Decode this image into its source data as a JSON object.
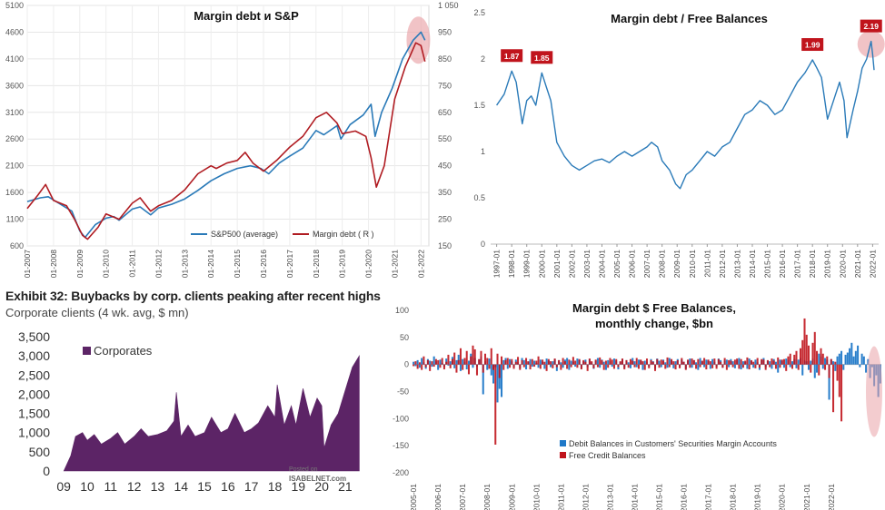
{
  "chart_data": [
    {
      "id": "margin-sp",
      "type": "line",
      "title": "Margin debt и S&P",
      "x_tick_labels": [
        "01-2007",
        "01-2008",
        "01-2009",
        "01-2010",
        "01-2011",
        "01-2012",
        "01-2013",
        "01-2014",
        "01-2015",
        "01-2016",
        "01-2017",
        "01-2018",
        "01-2019",
        "01-2020",
        "01-2021",
        "01-2022"
      ],
      "left_axis": {
        "ylim": [
          600,
          5100
        ],
        "ticks": [
          "600",
          "1100",
          "1600",
          "2100",
          "2600",
          "3100",
          "3600",
          "4100",
          "4600",
          "5100"
        ]
      },
      "right_axis": {
        "ylim": [
          150,
          1050
        ],
        "ticks": [
          "150",
          "250",
          "350",
          "450",
          "550",
          "650",
          "750",
          "850",
          "950",
          "1 050"
        ]
      },
      "series": [
        {
          "name": "S&P500 (average)",
          "color": "#2a7ab8",
          "axis": "left",
          "x": [
            2007,
            2007.5,
            2007.8,
            2008.3,
            2008.7,
            2009.0,
            2009.2,
            2009.6,
            2010.0,
            2010.3,
            2010.5,
            2011.0,
            2011.3,
            2011.7,
            2012.0,
            2012.5,
            2013.0,
            2013.5,
            2014.0,
            2014.5,
            2015.0,
            2015.5,
            2015.9,
            2016.2,
            2016.6,
            2017.0,
            2017.5,
            2018.0,
            2018.3,
            2018.8,
            2018.95,
            2019.3,
            2019.8,
            2020.1,
            2020.25,
            2020.5,
            2020.9,
            2021.3,
            2021.7,
            2022.0,
            2022.15
          ],
          "y": [
            1430,
            1500,
            1520,
            1370,
            1250,
            880,
            760,
            1000,
            1120,
            1150,
            1080,
            1290,
            1330,
            1180,
            1310,
            1380,
            1480,
            1640,
            1820,
            1950,
            2050,
            2100,
            2050,
            1950,
            2150,
            2280,
            2430,
            2760,
            2680,
            2850,
            2600,
            2870,
            3050,
            3250,
            2650,
            3100,
            3550,
            4100,
            4450,
            4600,
            4450
          ]
        },
        {
          "name": "Margin debt ( R )",
          "color": "#b01c22",
          "axis": "right",
          "x": [
            2007,
            2007.4,
            2007.7,
            2008.0,
            2008.5,
            2008.8,
            2009.1,
            2009.3,
            2009.7,
            2010.0,
            2010.5,
            2011.0,
            2011.3,
            2011.7,
            2012.0,
            2012.5,
            2013.0,
            2013.5,
            2014.0,
            2014.2,
            2014.6,
            2015.0,
            2015.3,
            2015.6,
            2016.0,
            2016.5,
            2017.0,
            2017.5,
            2018.0,
            2018.4,
            2018.8,
            2019.0,
            2019.5,
            2019.9,
            2020.1,
            2020.3,
            2020.6,
            2021.0,
            2021.4,
            2021.8,
            2022.0,
            2022.15
          ],
          "y": [
            290,
            340,
            380,
            320,
            300,
            250,
            190,
            175,
            220,
            270,
            250,
            310,
            330,
            280,
            300,
            320,
            360,
            420,
            450,
            440,
            460,
            470,
            500,
            460,
            430,
            470,
            520,
            560,
            630,
            650,
            610,
            570,
            580,
            560,
            480,
            370,
            450,
            700,
            820,
            910,
            900,
            840
          ]
        }
      ],
      "annotation": "highlight circle at 2021-2022 peak"
    },
    {
      "id": "ratio",
      "type": "line",
      "title": "Margin debt / Free Balances",
      "x_tick_labels": [
        "1997-01",
        "1998-01",
        "1999-01",
        "2000-01",
        "2001-01",
        "2002-01",
        "2003-01",
        "2004-01",
        "2005-01",
        "2006-01",
        "2007-01",
        "2008-01",
        "2009-01",
        "2010-01",
        "2011-01",
        "2012-01",
        "2013-01",
        "2014-01",
        "2015-01",
        "2016-01",
        "2017-01",
        "2018-01",
        "2019-01",
        "2020-01",
        "2021-01",
        "2022-01"
      ],
      "ylim": [
        0,
        2.5
      ],
      "y_ticks": [
        "0",
        "0.5",
        "1",
        "1.5",
        "2",
        "2.5"
      ],
      "series": [
        {
          "name": "Margin debt / Free Balances",
          "color": "#2a7ab8",
          "x": [
            1997.0,
            1997.5,
            1998.0,
            1998.3,
            1998.7,
            1999.0,
            1999.3,
            1999.6,
            2000.0,
            2000.3,
            2000.6,
            2001.0,
            2001.5,
            2002.0,
            2002.5,
            2003.0,
            2003.5,
            2004.0,
            2004.5,
            2005.0,
            2005.5,
            2006.0,
            2006.5,
            2007.0,
            2007.3,
            2007.7,
            2008.0,
            2008.5,
            2008.9,
            2009.2,
            2009.6,
            2010.0,
            2010.5,
            2011.0,
            2011.5,
            2012.0,
            2012.5,
            2013.0,
            2013.5,
            2014.0,
            2014.5,
            2015.0,
            2015.5,
            2016.0,
            2016.5,
            2017.0,
            2017.5,
            2018.0,
            2018.3,
            2018.6,
            2019.0,
            2019.5,
            2019.8,
            2020.1,
            2020.3,
            2020.7,
            2021.0,
            2021.3,
            2021.6,
            2021.9,
            2022.0,
            2022.1
          ],
          "y": [
            1.5,
            1.62,
            1.87,
            1.75,
            1.3,
            1.55,
            1.6,
            1.5,
            1.85,
            1.7,
            1.55,
            1.1,
            0.95,
            0.85,
            0.8,
            0.85,
            0.9,
            0.92,
            0.88,
            0.95,
            1.0,
            0.95,
            1.0,
            1.05,
            1.1,
            1.05,
            0.9,
            0.8,
            0.65,
            0.6,
            0.75,
            0.8,
            0.9,
            1.0,
            0.95,
            1.05,
            1.1,
            1.25,
            1.4,
            1.45,
            1.55,
            1.5,
            1.4,
            1.45,
            1.6,
            1.75,
            1.85,
            1.99,
            1.9,
            1.8,
            1.35,
            1.6,
            1.75,
            1.55,
            1.15,
            1.45,
            1.65,
            1.9,
            2.0,
            2.19,
            2.05,
            1.88
          ]
        }
      ],
      "annotations": [
        {
          "x": 1998.0,
          "y": 1.87,
          "label": "1.87"
        },
        {
          "x": 2000.0,
          "y": 1.85,
          "label": "1.85"
        },
        {
          "x": 2018.0,
          "y": 1.99,
          "label": "1.99"
        },
        {
          "x": 2021.9,
          "y": 2.19,
          "label": "2.19"
        }
      ]
    },
    {
      "id": "corporates",
      "type": "area",
      "title": "Exhibit 32: Buybacks by corp. clients peaking after recent highs",
      "subtitle": "Corporate clients (4 wk. avg, $ mn)",
      "x_tick_labels": [
        "09",
        "10",
        "11",
        "12",
        "13",
        "14",
        "15",
        "16",
        "17",
        "18",
        "19",
        "20",
        "21"
      ],
      "ylim": [
        0,
        3500
      ],
      "y_ticks": [
        "0",
        "500",
        "1,000",
        "1,500",
        "2,000",
        "2,500",
        "3,000",
        "3,500"
      ],
      "legend": "Corporates",
      "watermark": [
        "Posted on",
        "ISABELNET.com"
      ],
      "series": [
        {
          "name": "Corporates",
          "color": "#5c2466",
          "x": [
            9.0,
            9.3,
            9.5,
            9.8,
            10.0,
            10.3,
            10.6,
            11.0,
            11.3,
            11.6,
            12.0,
            12.3,
            12.6,
            13.0,
            13.4,
            13.7,
            13.8,
            14.0,
            14.3,
            14.6,
            15.0,
            15.3,
            15.7,
            16.0,
            16.3,
            16.7,
            17.0,
            17.3,
            17.7,
            18.0,
            18.1,
            18.4,
            18.7,
            18.9,
            19.2,
            19.5,
            19.8,
            20.0,
            20.1,
            20.4,
            20.7,
            21.0,
            21.3,
            21.6
          ],
          "y": [
            0,
            400,
            900,
            1000,
            800,
            950,
            700,
            850,
            1000,
            700,
            900,
            1100,
            900,
            950,
            1050,
            1300,
            2050,
            900,
            1200,
            900,
            1000,
            1400,
            1000,
            1100,
            1500,
            1000,
            1100,
            1250,
            1700,
            1400,
            2250,
            1200,
            1700,
            1200,
            2150,
            1400,
            1900,
            1700,
            600,
            1200,
            1500,
            2100,
            2700,
            3000
          ]
        }
      ]
    },
    {
      "id": "monthly-change",
      "type": "bar",
      "title_lines": [
        "Margin debt $ Free Balances,",
        "monthly change, $bn"
      ],
      "x_tick_labels": [
        "2005-01",
        "2006-01",
        "2007-01",
        "2008-01",
        "2009-01",
        "2010-01",
        "2011-01",
        "2012-01",
        "2013-01",
        "2014-01",
        "2015-01",
        "2016-01",
        "2017-01",
        "2018-01",
        "2019-01",
        "2020-01",
        "2021-01",
        "2022-01"
      ],
      "ylim": [
        -200,
        100
      ],
      "y_ticks": [
        "-200",
        "-150",
        "-100",
        "-50",
        "0",
        "50",
        "100"
      ],
      "series": [
        {
          "name": "Debit Balances in Customers' Securities Margin Accounts",
          "color": "#1f78c8",
          "values": [
            5,
            -3,
            8,
            -6,
            12,
            4,
            -8,
            10,
            7,
            -4,
            15,
            6,
            -10,
            9,
            3,
            -5,
            11,
            -2,
            6,
            14,
            -7,
            8,
            18,
            -12,
            10,
            5,
            -9,
            7,
            20,
            -6,
            12,
            -4,
            9,
            15,
            -55,
            6,
            -10,
            11,
            -20,
            -35,
            -5,
            -70,
            -45,
            -60,
            8,
            12,
            -8,
            10,
            6,
            -5,
            9,
            4,
            -7,
            12,
            8,
            -9,
            5,
            10,
            -4,
            7,
            3,
            -6,
            9,
            5,
            -8,
            11,
            7,
            -5,
            6,
            10,
            -12,
            8,
            4,
            -6,
            9,
            12,
            -10,
            7,
            5,
            -4,
            11,
            8,
            -7,
            6,
            9,
            -5,
            10,
            4,
            -8,
            7,
            12,
            -6,
            9,
            5,
            -10,
            8,
            6,
            -4,
            11,
            7,
            -9,
            5,
            10,
            -6,
            8,
            4,
            -7,
            12,
            6,
            -5,
            9,
            8,
            -10,
            7,
            5,
            -4,
            10,
            6,
            -8,
            11,
            7,
            -5,
            9,
            4,
            -6,
            12,
            8,
            -7,
            6,
            10,
            -5,
            9,
            5,
            -8,
            7,
            11,
            -6,
            8,
            4,
            -10,
            12,
            6,
            -5,
            9,
            7,
            -8,
            10,
            5,
            -4,
            11,
            8,
            -6,
            7,
            9,
            -5,
            10,
            6,
            -7,
            8,
            12,
            -9,
            6,
            5,
            -8,
            11,
            7,
            -6,
            9,
            4,
            -10,
            8,
            12,
            -5,
            7,
            6,
            -8,
            10,
            5,
            -15,
            9,
            7,
            -6,
            11,
            8,
            -5,
            6,
            10,
            -7,
            9,
            12,
            -20,
            8,
            6,
            -10,
            7,
            11,
            -25,
            -15,
            20,
            15,
            -8,
            12,
            9,
            -65,
            10,
            6,
            -12,
            15,
            20,
            25,
            -10,
            18,
            22,
            30,
            40,
            15,
            25,
            35,
            -5,
            20,
            15,
            -15,
            10,
            -25,
            -5,
            -40,
            -20,
            -60,
            -35
          ]
        },
        {
          "name": "Free Credit Balances",
          "color": "#c0141c",
          "values": [
            -3,
            6,
            -8,
            4,
            -10,
            15,
            -5,
            8,
            -12,
            6,
            -4,
            10,
            8,
            -6,
            12,
            -9,
            5,
            18,
            -7,
            10,
            22,
            -15,
            8,
            30,
            -10,
            12,
            25,
            -18,
            15,
            35,
            28,
            -20,
            10,
            25,
            -15,
            20,
            12,
            -8,
            30,
            -10,
            -148,
            20,
            -25,
            15,
            -10,
            8,
            12,
            -6,
            10,
            -8,
            5,
            14,
            -10,
            8,
            -5,
            12,
            6,
            -9,
            10,
            -4,
            7,
            15,
            -8,
            9,
            5,
            -12,
            10,
            6,
            -7,
            11,
            -5,
            8,
            -10,
            12,
            6,
            -8,
            9,
            -5,
            14,
            7,
            -6,
            10,
            -9,
            8,
            5,
            -12,
            11,
            6,
            -7,
            9,
            -5,
            13,
            8,
            -10,
            7,
            -6,
            12,
            9,
            -8,
            10,
            -5,
            6,
            11,
            -9,
            8,
            -6,
            10,
            7,
            -5,
            12,
            -8,
            9,
            6,
            -10,
            11,
            -7,
            8,
            5,
            -12,
            10,
            -6,
            9,
            7,
            -8,
            13,
            -5,
            10,
            6,
            -9,
            8,
            -7,
            12,
            5,
            -10,
            9,
            -6,
            11,
            8,
            -8,
            10,
            -5,
            7,
            12,
            -9,
            9,
            6,
            -7,
            11,
            -8,
            10,
            5,
            -6,
            12,
            -10,
            8,
            7,
            -5,
            9,
            11,
            -8,
            10,
            -6,
            7,
            13,
            -9,
            8,
            5,
            -7,
            12,
            -6,
            10,
            9,
            -10,
            8,
            -5,
            11,
            7,
            -8,
            13,
            -6,
            9,
            10,
            -12,
            15,
            20,
            -8,
            18,
            25,
            -10,
            30,
            45,
            85,
            55,
            35,
            -15,
            40,
            60,
            25,
            -20,
            30,
            20,
            -10,
            15,
            -25,
            10,
            -88,
            5,
            -30,
            -60,
            -105
          ]
        }
      ],
      "annotation": "highlight ellipse at 2022 decline"
    }
  ]
}
